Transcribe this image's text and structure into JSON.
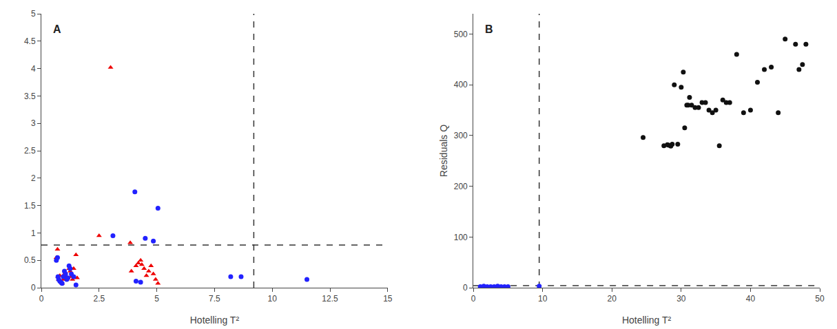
{
  "chart_data": [
    {
      "type": "scatter",
      "title": "A",
      "xlabel": "Hotelling T²",
      "xlim": [
        0,
        15
      ],
      "ylim": [
        0,
        5
      ],
      "xticks": [
        0,
        2.5,
        5,
        7.5,
        10,
        12.5,
        15
      ],
      "yticks": [
        0,
        0.5,
        1,
        1.5,
        2,
        2.5,
        3,
        3.5,
        4,
        4.5,
        5
      ],
      "grid": false,
      "series": [
        {
          "color": "#ee0000",
          "marker": "triangle",
          "x": [
            0.65,
            0.7,
            0.72,
            0.75,
            0.8,
            0.85,
            0.9,
            0.95,
            1.0,
            1.05,
            1.1,
            1.15,
            1.2,
            1.25,
            1.3,
            1.35,
            1.4,
            1.5,
            1.55,
            2.5,
            3.0,
            3.85,
            4.2,
            4.35,
            4.45,
            4.55,
            4.65,
            4.75,
            4.85,
            4.95,
            5.05,
            4.3,
            4.1,
            3.9
          ],
          "values": [
            0.55,
            0.7,
            0.2,
            0.15,
            0.22,
            0.12,
            0.08,
            0.15,
            0.25,
            0.2,
            0.15,
            0.18,
            0.35,
            0.3,
            0.2,
            0.15,
            0.35,
            0.6,
            0.18,
            0.95,
            4.02,
            0.82,
            0.45,
            0.42,
            0.35,
            0.22,
            0.3,
            0.4,
            0.25,
            0.15,
            0.08,
            0.5,
            0.4,
            0.3
          ]
        },
        {
          "color": "#2222ff",
          "marker": "circle",
          "x": [
            0.65,
            0.7,
            0.72,
            0.75,
            0.8,
            0.85,
            0.9,
            0.95,
            1.0,
            1.05,
            1.1,
            1.15,
            1.2,
            1.25,
            1.3,
            1.4,
            1.5,
            3.1,
            4.05,
            4.1,
            4.3,
            4.5,
            4.85,
            5.05,
            8.2,
            8.65,
            11.5
          ],
          "values": [
            0.5,
            0.55,
            0.2,
            0.15,
            0.12,
            0.1,
            0.08,
            0.2,
            0.3,
            0.25,
            0.15,
            0.18,
            0.4,
            0.35,
            0.25,
            0.2,
            0.05,
            0.95,
            1.75,
            0.12,
            0.1,
            0.9,
            0.85,
            1.45,
            0.2,
            0.2,
            0.15
          ]
        }
      ],
      "reference_lines": [
        {
          "axis": "x",
          "value": 9.2,
          "color": "#333333",
          "line_style": "dashed"
        },
        {
          "axis": "y",
          "value": 0.78,
          "color": "#333333",
          "line_style": "dashed"
        }
      ]
    },
    {
      "type": "scatter",
      "title": "B",
      "xlabel": "Hotelling T²",
      "ylabel": "Residuals Q",
      "xlim": [
        0,
        50
      ],
      "ylim": [
        0,
        540
      ],
      "xticks": [
        0,
        10,
        20,
        30,
        40,
        50
      ],
      "yticks": [
        0,
        100,
        200,
        300,
        400,
        500
      ],
      "grid": false,
      "series": [
        {
          "color": "#2222ff",
          "marker": "circle",
          "x": [
            1.0,
            1.5,
            2.0,
            2.5,
            3.0,
            3.5,
            4.0,
            4.5,
            5.0,
            9.5
          ],
          "values": [
            2,
            3,
            2,
            2,
            2,
            3,
            2,
            2,
            2,
            3
          ]
        },
        {
          "color": "#111111",
          "marker": "circle",
          "x": [
            24.5,
            27.5,
            28.0,
            28.2,
            28.5,
            28.7,
            29.0,
            29.5,
            30.0,
            30.3,
            30.5,
            30.8,
            31.0,
            31.2,
            31.5,
            32.0,
            32.5,
            33.0,
            33.5,
            34.0,
            34.5,
            35.0,
            35.5,
            36.0,
            36.5,
            37.0,
            38.0,
            39.0,
            40.0,
            41.0,
            42.0,
            43.0,
            44.0,
            45.0,
            46.5,
            47.0,
            47.5,
            48.0
          ],
          "values": [
            296,
            280,
            282,
            281,
            279,
            283,
            400,
            283,
            395,
            425,
            315,
            360,
            360,
            375,
            360,
            355,
            355,
            365,
            365,
            350,
            345,
            350,
            280,
            370,
            365,
            365,
            460,
            345,
            350,
            405,
            430,
            435,
            345,
            490,
            480,
            430,
            440,
            480
          ]
        }
      ],
      "reference_lines": [
        {
          "axis": "x",
          "value": 9.5,
          "color": "#333333",
          "line_style": "dashed"
        },
        {
          "axis": "y",
          "value": 4,
          "color": "#333333",
          "line_style": "dashed"
        }
      ]
    }
  ]
}
